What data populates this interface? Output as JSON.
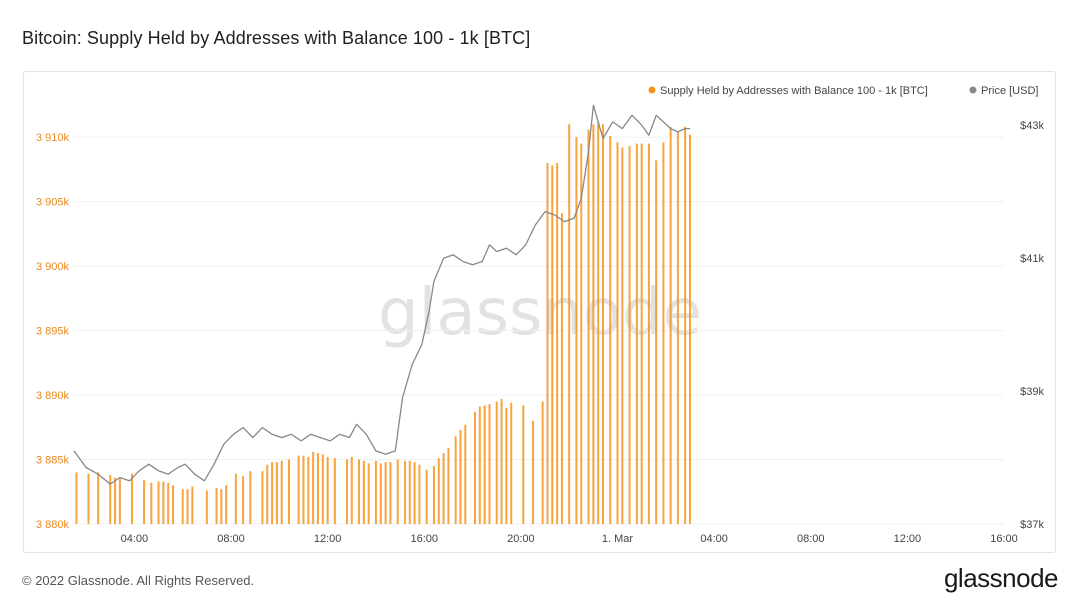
{
  "page": {
    "title": "Bitcoin: Supply Held by Addresses with Balance 100 - 1k [BTC]",
    "footer_copyright": "© 2022 Glassnode. All Rights Reserved.",
    "footer_logo": "glassnode",
    "watermark": "glassnode"
  },
  "chart_data": {
    "type": "bar",
    "legend_placement": "top-right",
    "grid": true,
    "series": [
      {
        "name": "Supply Held by Addresses with Balance 100 - 1k [BTC]",
        "type": "bar",
        "axis": "left",
        "color": "#f7931a"
      },
      {
        "name": "Price [USD]",
        "type": "line",
        "axis": "right",
        "color": "#888888"
      }
    ],
    "y_left": {
      "range": [
        3880,
        3913.5
      ],
      "ticks": [
        3880,
        3885,
        3890,
        3895,
        3900,
        3905,
        3910
      ],
      "tick_labels": [
        "3 880k",
        "3 885k",
        "3 890k",
        "3 895k",
        "3 900k",
        "3 905k",
        "3 910k"
      ]
    },
    "y_right": {
      "range": [
        37000,
        43500
      ],
      "ticks": [
        37000,
        39000,
        41000,
        43000
      ],
      "tick_labels": [
        "$37k",
        "$39k",
        "$41k",
        "$43k"
      ]
    },
    "x_axis": {
      "range_hours": [
        1.5,
        40
      ],
      "ticks": [
        4,
        8,
        12,
        16,
        20,
        24,
        28,
        32,
        36,
        40
      ],
      "tick_labels": [
        "04:00",
        "08:00",
        "12:00",
        "16:00",
        "20:00",
        "1. Mar",
        "04:00",
        "08:00",
        "12:00",
        "16:00"
      ]
    },
    "bar_hours": [
      1.6,
      2.1,
      2.5,
      3.0,
      3.2,
      3.4,
      3.9,
      4.4,
      4.7,
      5.0,
      5.2,
      5.4,
      5.6,
      6.0,
      6.2,
      6.4,
      7.0,
      7.4,
      7.6,
      7.8,
      8.2,
      8.5,
      8.8,
      9.3,
      9.5,
      9.7,
      9.9,
      10.1,
      10.4,
      10.8,
      11.0,
      11.2,
      11.4,
      11.6,
      11.8,
      12.0,
      12.3,
      12.8,
      13.0,
      13.3,
      13.5,
      13.7,
      14.0,
      14.2,
      14.4,
      14.6,
      14.9,
      15.2,
      15.4,
      15.6,
      15.8,
      16.1,
      16.4,
      16.6,
      16.8,
      17.0,
      17.3,
      17.5,
      17.7,
      18.1,
      18.3,
      18.5,
      18.7,
      19.0,
      19.2,
      19.4,
      19.6,
      20.1,
      20.5,
      20.9,
      21.1,
      21.3,
      21.5,
      21.7,
      22.0,
      22.3,
      22.5,
      22.8,
      23.0,
      23.2,
      23.4,
      23.7,
      24.0,
      24.2,
      24.5,
      24.8,
      25.0,
      25.3,
      25.6,
      25.9,
      26.2,
      26.5,
      26.8,
      27.0
    ],
    "bar_values": [
      3884.0,
      3883.9,
      3884.0,
      3883.8,
      3883.6,
      3883.6,
      3883.9,
      3883.4,
      3883.2,
      3883.3,
      3883.3,
      3883.2,
      3883.0,
      3882.7,
      3882.7,
      3882.9,
      3882.6,
      3882.8,
      3882.7,
      3883.0,
      3883.9,
      3883.7,
      3884.1,
      3884.1,
      3884.6,
      3884.8,
      3884.8,
      3884.9,
      3885.0,
      3885.3,
      3885.3,
      3885.2,
      3885.6,
      3885.5,
      3885.4,
      3885.2,
      3885.1,
      3885.0,
      3885.2,
      3885.0,
      3884.9,
      3884.7,
      3884.9,
      3884.7,
      3884.8,
      3884.8,
      3885.0,
      3884.9,
      3884.9,
      3884.8,
      3884.6,
      3884.2,
      3884.5,
      3885.1,
      3885.5,
      3885.9,
      3886.8,
      3887.3,
      3887.7,
      3888.7,
      3889.1,
      3889.2,
      3889.3,
      3889.5,
      3889.7,
      3889.0,
      3889.4,
      3889.2,
      3888.0,
      3889.5,
      3908.0,
      3907.8,
      3908.0,
      3904.1,
      3911.0,
      3910.0,
      3909.5,
      3910.6,
      3911.0,
      3911.2,
      3911.0,
      3910.1,
      3909.6,
      3909.2,
      3909.3,
      3909.5,
      3909.5,
      3909.5,
      3908.2,
      3909.6,
      3910.8,
      3910.4,
      3910.8,
      3910.2
    ],
    "price_points": [
      [
        1.5,
        38100
      ],
      [
        2.0,
        37850
      ],
      [
        2.5,
        37750
      ],
      [
        3.0,
        37600
      ],
      [
        3.4,
        37700
      ],
      [
        3.8,
        37650
      ],
      [
        4.2,
        37800
      ],
      [
        4.6,
        37900
      ],
      [
        5.0,
        37800
      ],
      [
        5.4,
        37750
      ],
      [
        5.8,
        37850
      ],
      [
        6.1,
        37900
      ],
      [
        6.5,
        37750
      ],
      [
        6.9,
        37650
      ],
      [
        7.3,
        37900
      ],
      [
        7.7,
        38200
      ],
      [
        8.1,
        38350
      ],
      [
        8.5,
        38450
      ],
      [
        8.9,
        38300
      ],
      [
        9.3,
        38450
      ],
      [
        9.7,
        38350
      ],
      [
        10.1,
        38300
      ],
      [
        10.5,
        38350
      ],
      [
        10.9,
        38250
      ],
      [
        11.3,
        38350
      ],
      [
        11.7,
        38300
      ],
      [
        12.1,
        38250
      ],
      [
        12.5,
        38350
      ],
      [
        12.9,
        38300
      ],
      [
        13.2,
        38500
      ],
      [
        13.6,
        38350
      ],
      [
        14.0,
        38100
      ],
      [
        14.4,
        38050
      ],
      [
        14.8,
        38100
      ],
      [
        15.1,
        38900
      ],
      [
        15.5,
        39400
      ],
      [
        15.9,
        39700
      ],
      [
        16.2,
        40200
      ],
      [
        16.4,
        40650
      ],
      [
        16.8,
        41000
      ],
      [
        17.2,
        41050
      ],
      [
        17.6,
        40950
      ],
      [
        18.0,
        40900
      ],
      [
        18.4,
        40950
      ],
      [
        18.7,
        41200
      ],
      [
        19.0,
        41100
      ],
      [
        19.4,
        41150
      ],
      [
        19.8,
        41050
      ],
      [
        20.2,
        41200
      ],
      [
        20.6,
        41500
      ],
      [
        21.0,
        41700
      ],
      [
        21.4,
        41650
      ],
      [
        21.8,
        41550
      ],
      [
        22.2,
        41600
      ],
      [
        22.5,
        41900
      ],
      [
        22.8,
        42600
      ],
      [
        23.0,
        43300
      ],
      [
        23.4,
        42800
      ],
      [
        23.8,
        43050
      ],
      [
        24.2,
        42950
      ],
      [
        24.6,
        43150
      ],
      [
        25.0,
        43000
      ],
      [
        25.3,
        42850
      ],
      [
        25.6,
        43150
      ],
      [
        25.9,
        43050
      ],
      [
        26.2,
        42950
      ],
      [
        26.5,
        42900
      ],
      [
        26.8,
        42950
      ],
      [
        27.0,
        42950
      ]
    ]
  }
}
